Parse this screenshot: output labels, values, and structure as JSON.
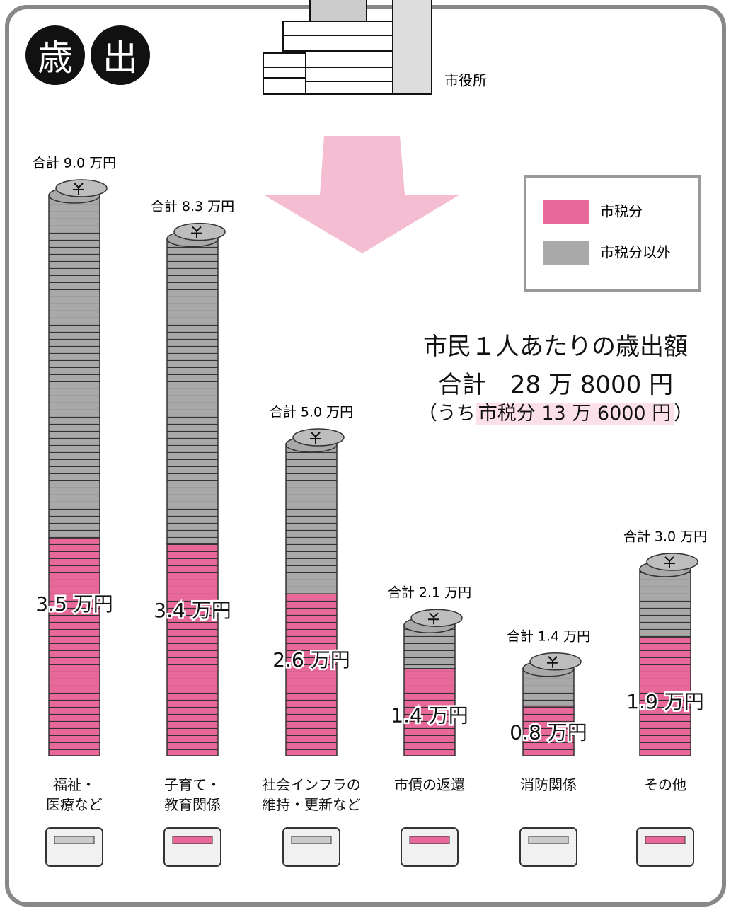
{
  "chart_data": {
    "type": "stacked-coins",
    "badge": [
      "歳",
      "出"
    ],
    "building_label": "市役所",
    "summary": {
      "line1": "市民１人あたりの歳出額",
      "line2": "合計　28 万 8000 円",
      "line3_open": "（うち",
      "line3_highlight": "市税分 13 万 6000 円",
      "line3_close": "）"
    },
    "categories": [
      "福祉・\n医療など",
      "子育て・\n教育関係",
      "社会インフラの\n維持・更新など",
      "市債の返還",
      "消防関係",
      "その他"
    ],
    "series": [
      {
        "name": "市税分",
        "color": "#e8689a",
        "values": [
          3.5,
          3.4,
          2.6,
          1.4,
          0.8,
          1.9
        ],
        "value_labels": [
          "3.5 万円",
          "3.4 万円",
          "2.6 万円",
          "1.4 万円",
          "0.8 万円",
          "1.9 万円"
        ]
      },
      {
        "name": "市税分以外",
        "color": "#a9a9a9",
        "values": [
          5.5,
          4.9,
          2.4,
          0.7,
          0.6,
          1.1
        ]
      }
    ],
    "total_labels": [
      "合計 9.0 万円",
      "合計 8.3 万円",
      "合計 5.0 万円",
      "合計 2.1 万円",
      "合計 1.4 万円",
      "合計 3.0 万円"
    ]
  }
}
